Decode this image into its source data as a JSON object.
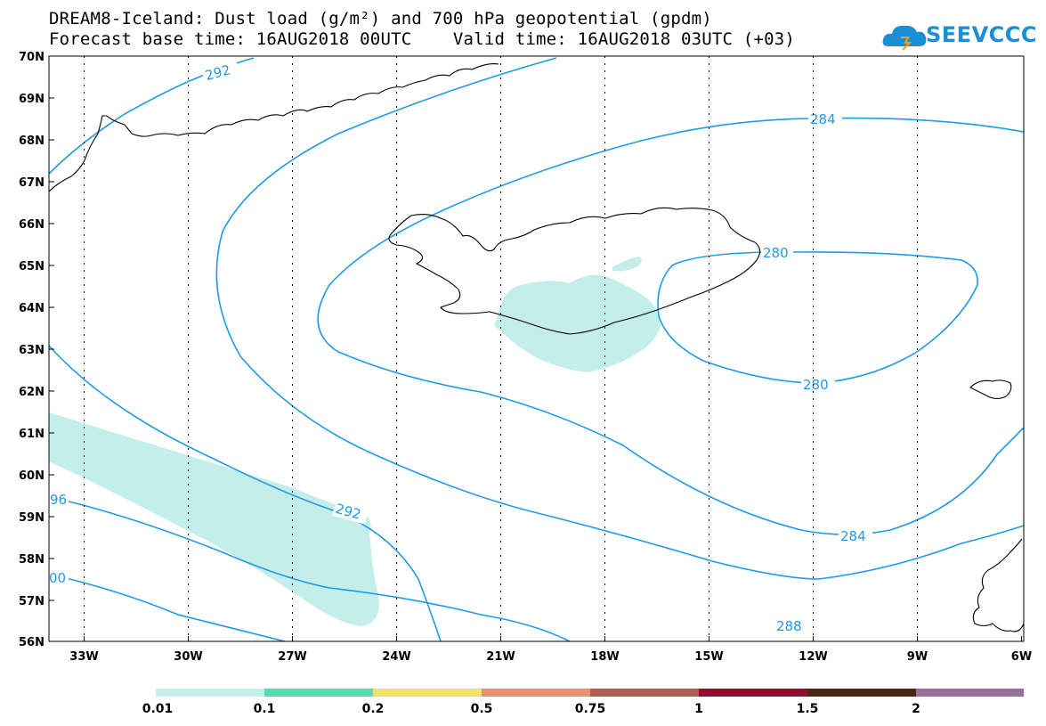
{
  "header": {
    "title_line1": "DREAM8-Iceland: Dust load (g/m²) and 700 hPa geopotential (gpdm)",
    "title_line2": "Forecast base time: 16AUG2018 00UTC    Valid time: 16AUG2018 03UTC (+03)",
    "logo_text": "SEEVCCC"
  },
  "map": {
    "lat_labels": [
      "70N",
      "69N",
      "68N",
      "67N",
      "66N",
      "65N",
      "64N",
      "63N",
      "62N",
      "61N",
      "60N",
      "59N",
      "58N",
      "57N",
      "56N"
    ],
    "lon_labels": [
      "33W",
      "30W",
      "27W",
      "24W",
      "21W",
      "18W",
      "15W",
      "12W",
      "9W",
      "6W"
    ],
    "contour_labels": [
      "292",
      "284",
      "280",
      "280",
      "292",
      "284",
      "288",
      "96",
      "00"
    ],
    "colors": {
      "contour": "#1f9be6",
      "dust_fill": "#c3eeea",
      "coast": "#000000"
    }
  },
  "colorbar": {
    "colors": [
      "#c3eeea",
      "#5fd9b0",
      "#f0e070",
      "#e89070",
      "#b06050",
      "#8a1030",
      "#4a2810",
      "#9a70a0"
    ],
    "tick_labels": [
      "0.01",
      "0.1",
      "0.2",
      "0.5",
      "0.75",
      "1",
      "1.5",
      "2"
    ]
  }
}
